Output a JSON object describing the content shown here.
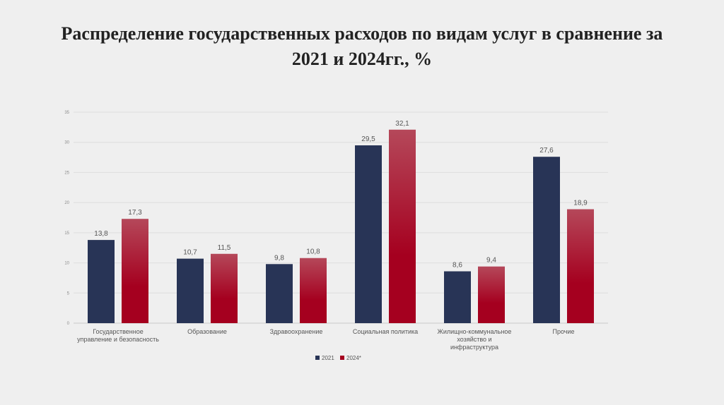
{
  "slide": {
    "title_line1": "Распределение государственных расходов по видам услуг в сравнение за",
    "title_line2": "2021 и 2024гг., %"
  },
  "chart_data": {
    "type": "bar",
    "categories": [
      [
        "Государственное",
        "управление и безопасность"
      ],
      [
        "Образование"
      ],
      [
        "Здравоохранение"
      ],
      [
        "Социальная политика"
      ],
      [
        "Жилищно-коммунальное",
        "хозяйство и",
        "инфраструктура"
      ],
      [
        "Прочие"
      ]
    ],
    "series": [
      {
        "name": "2021",
        "values": [
          13.8,
          10.7,
          9.8,
          29.5,
          8.6,
          27.6
        ],
        "labels": [
          "13,8",
          "10,7",
          "9,8",
          "29,5",
          "8,6",
          "27,6"
        ],
        "color": "#283456"
      },
      {
        "name": "2024*",
        "values": [
          17.3,
          11.5,
          10.8,
          32.1,
          9.4,
          18.9
        ],
        "labels": [
          "17,3",
          "11,5",
          "10,8",
          "32,1",
          "9,4",
          "18,9"
        ],
        "color": "#a5001f",
        "color_light": "#b5485a"
      }
    ],
    "ylim": [
      0,
      35
    ],
    "yticks": [
      0,
      5,
      10,
      15,
      20,
      25,
      30,
      35
    ],
    "grid": true,
    "legend": "bottom-center"
  }
}
